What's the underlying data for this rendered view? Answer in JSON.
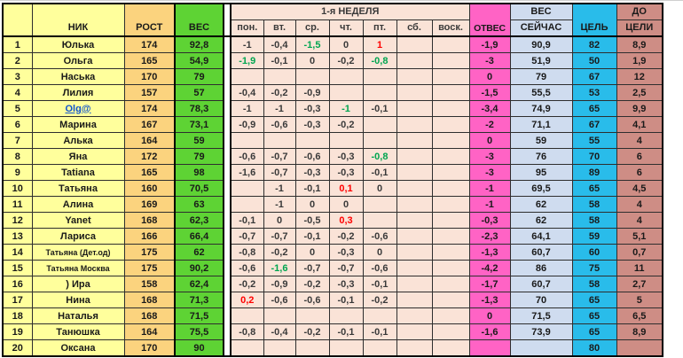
{
  "palette": {
    "row_header_yellow": "#FFFF9C",
    "height_col_orange": "#FBD37E",
    "weight_col_green": "#5ED334",
    "week_peach": "#FAE3D7",
    "otves_pink": "#FF63C5",
    "current_weight_blue": "#CFDCEF",
    "goal_cyan": "#29BCEA",
    "to_goal_rose": "#CE8D85",
    "good_value_green": "#00A550",
    "bad_value_red": "#FF0000",
    "link_blue": "#1155CC"
  },
  "table": {
    "corner": "",
    "headers": {
      "nick": "НИК",
      "rost": "РОСТ",
      "ves": "ВЕС",
      "week": "1-я НЕДЕЛЯ",
      "days": [
        "пон.",
        "вт.",
        "ср.",
        "чт.",
        "пт.",
        "сб.",
        "воск."
      ],
      "otves": "ОТВЕС",
      "now_line1": "ВЕС",
      "now_line2": "СЕЙЧАС",
      "goal": "ЦЕЛЬ",
      "togo_line1": "ДО",
      "togo_line2": "ЦЕЛИ"
    },
    "rows": [
      {
        "n": "1",
        "nick": "Юлька",
        "rost": "174",
        "ves": "92,8",
        "days": [
          "-1",
          "-0,4",
          "-1,5",
          "0",
          "1",
          "",
          ""
        ],
        "dc": [
          "",
          "",
          "g",
          "",
          "r",
          "",
          ""
        ],
        "otves": "-1,9",
        "now": "90,9",
        "goal": "82",
        "togo": "8,9"
      },
      {
        "n": "2",
        "nick": "Ольга",
        "rost": "165",
        "ves": "54,9",
        "days": [
          "-1,9",
          "-0,1",
          "0",
          "-0,2",
          "-0,8",
          "",
          ""
        ],
        "dc": [
          "g",
          "",
          "",
          "",
          "g",
          "",
          ""
        ],
        "otves": "-3",
        "now": "51,9",
        "goal": "50",
        "togo": "1,9"
      },
      {
        "n": "3",
        "nick": "Наська",
        "rost": "170",
        "ves": "79",
        "days": [
          "",
          "",
          "",
          "",
          "",
          "",
          ""
        ],
        "otves": "0",
        "now": "79",
        "goal": "67",
        "togo": "12"
      },
      {
        "n": "4",
        "nick": "Лилия",
        "rost": "157",
        "ves": "57",
        "days": [
          "-0,4",
          "-0,2",
          "-0,9",
          "",
          "",
          "",
          ""
        ],
        "otves": "-1,5",
        "now": "55,5",
        "goal": "53",
        "togo": "2,5"
      },
      {
        "n": "5",
        "nick": "Olg@",
        "link": true,
        "rost": "174",
        "ves": "78,3",
        "days": [
          "-1",
          "-1",
          "-0,3",
          "-1",
          "-0,1",
          "",
          ""
        ],
        "dc": [
          "",
          "",
          "",
          "g",
          "",
          "",
          ""
        ],
        "otves": "-3,4",
        "now": "74,9",
        "goal": "65",
        "togo": "9,9"
      },
      {
        "n": "6",
        "nick": "Марина",
        "rost": "167",
        "ves": "73,1",
        "days": [
          "-0,9",
          "-0,6",
          "-0,3",
          "-0,2",
          "",
          "",
          ""
        ],
        "otves": "-2",
        "now": "71,1",
        "goal": "67",
        "togo": "4,1"
      },
      {
        "n": "7",
        "nick": "Алька",
        "rost": "164",
        "ves": "59",
        "days": [
          "",
          "",
          "",
          "",
          "",
          "",
          ""
        ],
        "otves": "0",
        "now": "59",
        "goal": "55",
        "togo": "4"
      },
      {
        "n": "8",
        "nick": "Яна",
        "rost": "172",
        "ves": "79",
        "days": [
          "-0,6",
          "-0,7",
          "-0,6",
          "-0,3",
          "-0,8",
          "",
          ""
        ],
        "dc": [
          "",
          "",
          "",
          "",
          "g",
          "",
          ""
        ],
        "otves": "-3",
        "now": "76",
        "goal": "70",
        "togo": "6"
      },
      {
        "n": "9",
        "nick": "Tatiana",
        "rost": "165",
        "ves": "98",
        "days": [
          "-1,6",
          "-0,7",
          "-0,3",
          "-0,3",
          "-0,1",
          "",
          ""
        ],
        "otves": "-3",
        "now": "95",
        "goal": "89",
        "togo": "6"
      },
      {
        "n": "10",
        "nick": "Татьяна",
        "rost": "160",
        "ves": "70,5",
        "days": [
          "",
          "-1",
          "-0,1",
          "0,1",
          "0",
          "",
          ""
        ],
        "dc": [
          "",
          "",
          "",
          "r",
          "",
          "",
          ""
        ],
        "otves": "-1",
        "now": "69,5",
        "goal": "65",
        "togo": "4,5"
      },
      {
        "n": "11",
        "nick": "Алина",
        "rost": "169",
        "ves": "63",
        "days": [
          "",
          "-1",
          "0",
          "0",
          "",
          "",
          ""
        ],
        "otves": "-1",
        "now": "62",
        "goal": "58",
        "togo": "4"
      },
      {
        "n": "12",
        "nick": "Yanet",
        "rost": "168",
        "ves": "62,3",
        "days": [
          "-0,1",
          "0",
          "-0,5",
          "0,3",
          "",
          "",
          ""
        ],
        "dc": [
          "",
          "",
          "",
          "r",
          "",
          "",
          ""
        ],
        "otves": "-0,3",
        "now": "62",
        "goal": "58",
        "togo": "4"
      },
      {
        "n": "13",
        "nick": "Лариса",
        "rost": "166",
        "ves": "66,4",
        "days": [
          "-0,7",
          "-0,7",
          "-0,1",
          "-0,2",
          "-0,6",
          "",
          ""
        ],
        "otves": "-2,3",
        "now": "64,1",
        "goal": "59",
        "togo": "5,1"
      },
      {
        "n": "14",
        "nick": "Татьяна (Дет.од)",
        "small": true,
        "rost": "175",
        "ves": "62",
        "days": [
          "-0,8",
          "-0,2",
          "0",
          "-0,3",
          "0",
          "",
          ""
        ],
        "otves": "-1,3",
        "now": "60,7",
        "goal": "60",
        "togo": "0,7"
      },
      {
        "n": "15",
        "nick": "Татьяна Москва",
        "small": true,
        "rost": "175",
        "ves": "90,2",
        "days": [
          "-0,6",
          "-1,6",
          "-0,7",
          "-0,7",
          "-0,6",
          "",
          ""
        ],
        "dc": [
          "",
          "g",
          "",
          "",
          "",
          "",
          ""
        ],
        "otves": "-4,2",
        "now": "86",
        "goal": "75",
        "togo": "11"
      },
      {
        "n": "16",
        "nick": ") Ира",
        "rost": "158",
        "ves": "62,4",
        "days": [
          "-0,2",
          "-0,9",
          "-0,2",
          "-0,3",
          "-0,1",
          "",
          ""
        ],
        "otves": "-1,7",
        "now": "60,7",
        "goal": "58",
        "togo": "2,7"
      },
      {
        "n": "17",
        "nick": "Нина",
        "rost": "168",
        "ves": "71,3",
        "days": [
          "0,2",
          "-0,6",
          "-0,6",
          "-0,1",
          "-0,2",
          "",
          ""
        ],
        "dc": [
          "r",
          "",
          "",
          "",
          "",
          "",
          ""
        ],
        "otves": "-1,3",
        "now": "70",
        "goal": "65",
        "togo": "5"
      },
      {
        "n": "18",
        "nick": "Наталья",
        "rost": "168",
        "ves": "71,5",
        "days": [
          "",
          "",
          "",
          "",
          "",
          "",
          ""
        ],
        "otves": "0",
        "now": "71,5",
        "goal": "65",
        "togo": "6,5"
      },
      {
        "n": "19",
        "nick": "Танюшка",
        "rost": "164",
        "ves": "75,5",
        "days": [
          "-0,8",
          "-0,4",
          "-0,2",
          "-0,1",
          "-0,1",
          "",
          ""
        ],
        "otves": "-1,6",
        "now": "73,9",
        "goal": "65",
        "togo": "8,9"
      },
      {
        "n": "20",
        "nick": "Оксана",
        "rost": "170",
        "ves": "90",
        "days": [
          "",
          "",
          "",
          "",
          "",
          "",
          ""
        ],
        "otves": "",
        "now": "",
        "goal": "80",
        "togo": ""
      }
    ]
  }
}
